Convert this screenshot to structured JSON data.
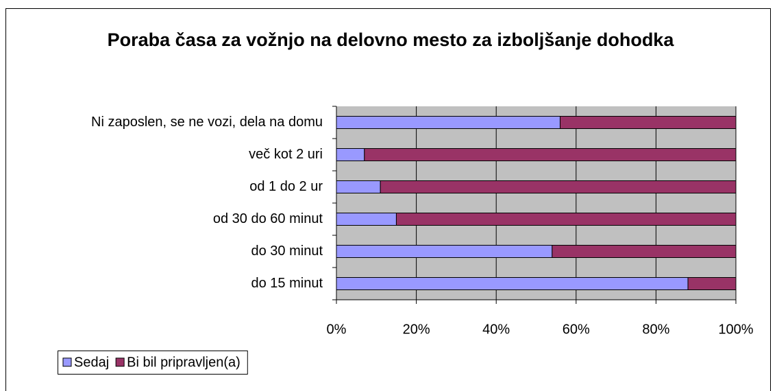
{
  "chart_data": {
    "type": "stacked_bar_horizontal",
    "title": "Poraba časa za vožnjo na delovno mesto za izboljšanje dohodka",
    "categories": [
      "Ni zaposlen, se ne vozi, dela na domu",
      "več kot 2 uri",
      "od 1 do 2 ur",
      "od 30 do 60 minut",
      "do 30 minut",
      "do 15 minut"
    ],
    "series": [
      {
        "name": "Sedaj",
        "color": "#9999ff",
        "values": [
          56,
          7,
          11,
          15,
          54,
          88
        ]
      },
      {
        "name": "Bi bil pripravljen(a)",
        "color": "#993366",
        "values": [
          44,
          93,
          89,
          85,
          46,
          12
        ]
      }
    ],
    "xlim": [
      0,
      100
    ],
    "xticks": [
      {
        "value": 0,
        "label": "0%"
      },
      {
        "value": 20,
        "label": "20%"
      },
      {
        "value": 40,
        "label": "40%"
      },
      {
        "value": 60,
        "label": "60%"
      },
      {
        "value": 80,
        "label": "80%"
      },
      {
        "value": 100,
        "label": "100%"
      }
    ],
    "grid": true,
    "legend": "bottom-left"
  }
}
